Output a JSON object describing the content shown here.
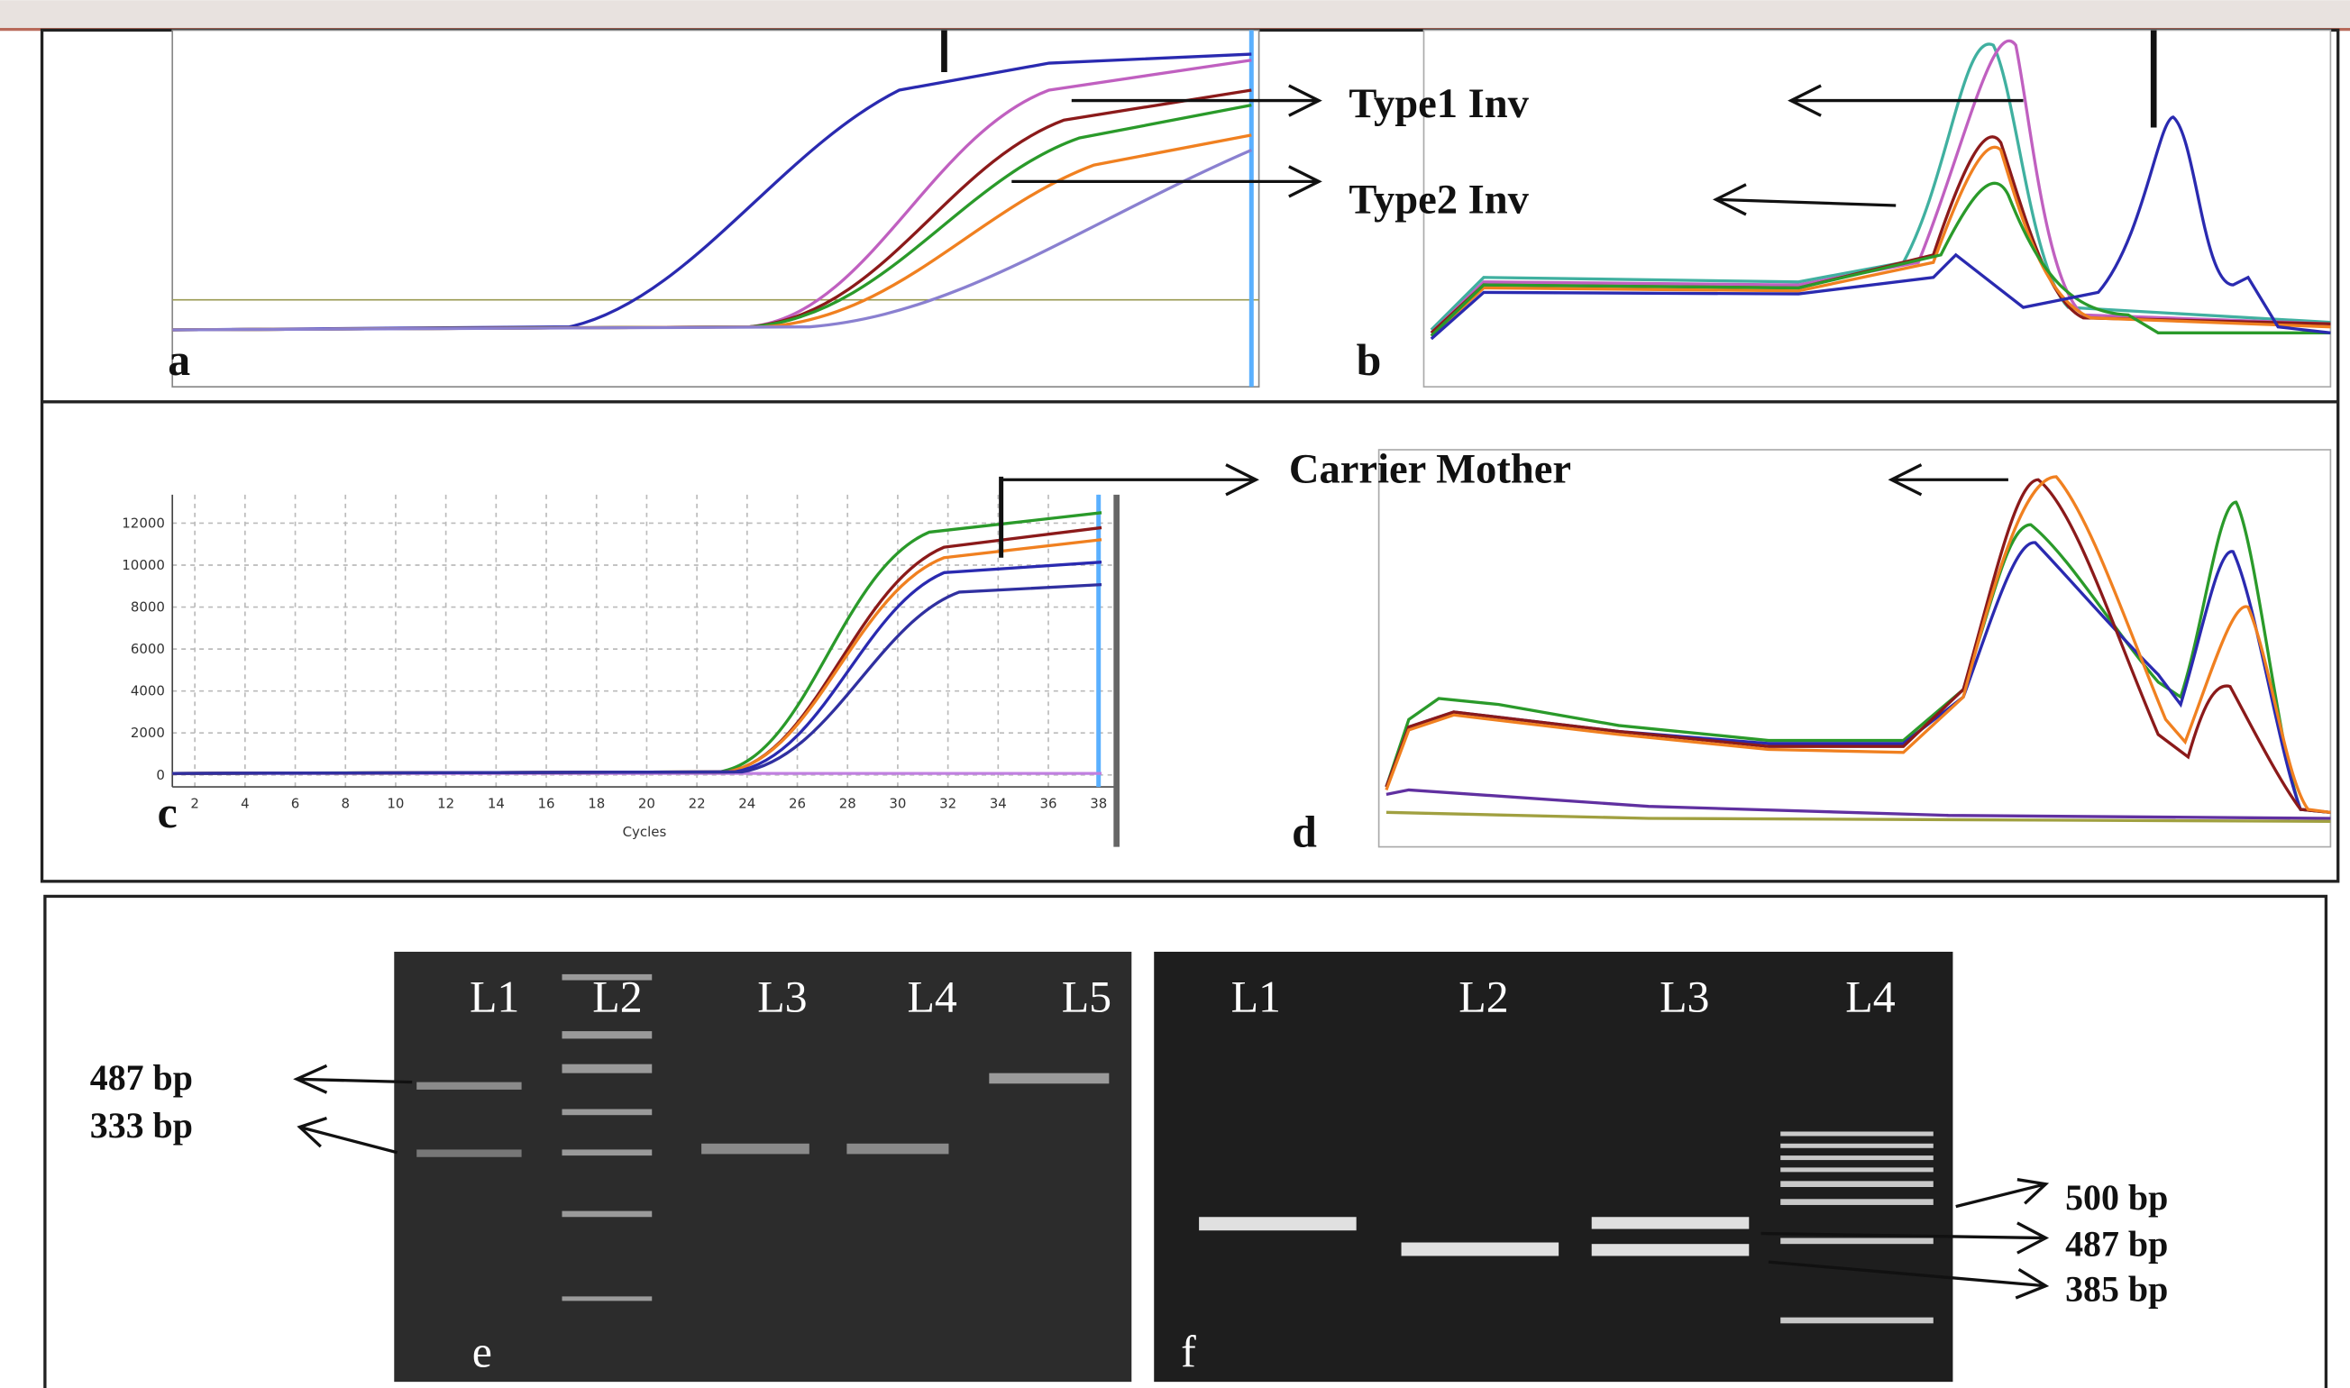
{
  "panels": {
    "a": {
      "label": "a"
    },
    "b": {
      "label": "b"
    },
    "c": {
      "label": "c",
      "x_label": "Cycles",
      "xlim": [
        2,
        38
      ],
      "ylim": [
        0,
        12000
      ],
      "xticks": [
        2,
        4,
        6,
        8,
        10,
        12,
        14,
        16,
        18,
        20,
        22,
        24,
        26,
        28,
        30,
        32,
        34,
        36,
        38
      ],
      "yticks": [
        0,
        2000,
        4000,
        6000,
        8000,
        10000,
        12000
      ]
    },
    "d": {
      "label": "d"
    },
    "e": {
      "label": "e",
      "lanes": [
        "L1",
        "L2",
        "L3",
        "L4",
        "L5"
      ],
      "bands": [
        "487 bp",
        "333 bp"
      ]
    },
    "f": {
      "label": "f",
      "lanes": [
        "L1",
        "L2",
        "L3",
        "L4"
      ],
      "bands": [
        "500 bp",
        "487 bp",
        "385 bp"
      ]
    }
  },
  "annotations": {
    "type1": "Type1 Inv",
    "type2": "Type2 Inv",
    "carrier": "Carrier Mother"
  }
}
